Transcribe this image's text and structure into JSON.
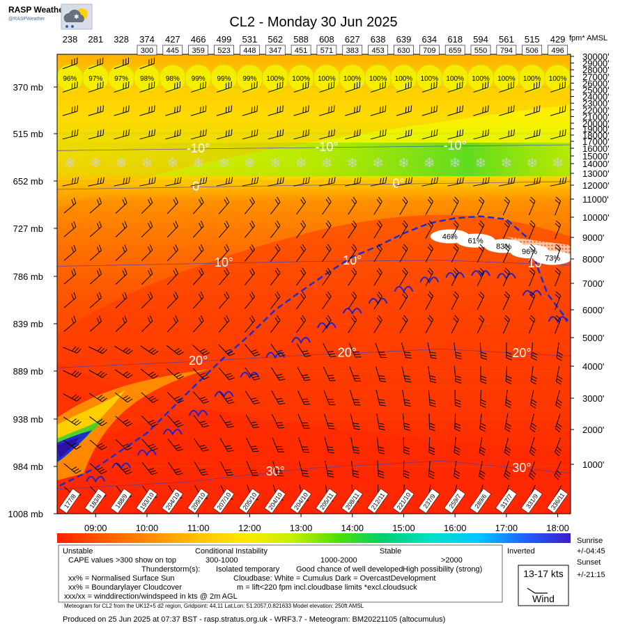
{
  "brand": {
    "name": "RASP Weather",
    "handle": "@RASPWeather",
    "logo_icon": "cloud-sun-rain-icon"
  },
  "title": "CL2 - Monday 30 Jun 2025",
  "top_axis_unit": "fpm* AMSL",
  "chart_data": {
    "type": "heatmap",
    "title": "CL2 - Monday 30 Jun 2025",
    "times": [
      "08:30",
      "09:00",
      "09:30",
      "10:00",
      "10:30",
      "11:00",
      "11:30",
      "12:00",
      "12:30",
      "13:00",
      "13:30",
      "14:00",
      "14:30",
      "15:00",
      "15:30",
      "16:00",
      "16:30",
      "17:00",
      "17:30",
      "18:00"
    ],
    "x_tick_labels": [
      "09:00",
      "10:00",
      "11:00",
      "12:00",
      "13:00",
      "14:00",
      "15:00",
      "16:00",
      "17:00",
      "18:00"
    ],
    "x_tick_hours": [
      9,
      10,
      11,
      12,
      13,
      14,
      15,
      16,
      17,
      18
    ],
    "x_range_hours": [
      8.25,
      18.25
    ],
    "pressure_labels_mb": [
      370,
      515,
      652,
      727,
      786,
      839,
      889,
      938,
      984,
      1008
    ],
    "pressure_suffix": "mb",
    "altitude_labels_ft": [
      1000,
      2000,
      3000,
      4000,
      5000,
      6000,
      7000,
      8000,
      9000,
      10000,
      11000,
      12000,
      13000,
      14000,
      15000,
      16000,
      17000,
      18000,
      19000,
      20000,
      21000,
      22000,
      23000,
      24000,
      25000,
      26000,
      27000,
      28000,
      29000,
      30000
    ],
    "altitude_suffix": "'",
    "cloudbase_fpm": [
      238,
      281,
      328,
      374,
      427,
      466,
      499,
      531,
      562,
      588,
      608,
      627,
      638,
      639,
      634,
      618,
      594,
      561,
      515,
      429
    ],
    "cape_values": [
      null,
      null,
      null,
      300,
      445,
      359,
      523,
      448,
      347,
      451,
      571,
      383,
      453,
      630,
      709,
      659,
      550,
      794,
      506,
      496
    ],
    "sun_percent": [
      "96%",
      "97%",
      "97%",
      "98%",
      "98%",
      "99%",
      "99%",
      "99%",
      "100%",
      "100%",
      "100%",
      "100%",
      "100%",
      "100%",
      "100%",
      "100%",
      "100%",
      "100%",
      "100%",
      "100%"
    ],
    "surface_wind": [
      "177/8",
      "183/8",
      "188/9",
      "193/10",
      "204/10",
      "209/10",
      "207/10",
      "205/10",
      "204/10",
      "204/10",
      "205/11",
      "208/11",
      "212/11",
      "221/10",
      "237/9",
      "259/7",
      "289/6",
      "317/7",
      "331/9",
      "336/11"
    ],
    "blcloud_percent": [
      "46%",
      "61%",
      "83%",
      "96%",
      "73%"
    ],
    "blcloud_hours": [
      15.9,
      16.4,
      16.95,
      17.45,
      17.9
    ],
    "blcloud_alt_ft": [
      9050,
      8850,
      8600,
      8350,
      8050
    ],
    "isotherms": [
      {
        "label": "-10°",
        "alt_ft": [
          15700,
          15900,
          16100,
          16300,
          16500
        ],
        "label_hours": [
          11.0,
          13.5,
          16.0
        ]
      },
      {
        "label": "0°",
        "alt_ft": [
          11700,
          11850,
          12000,
          12150,
          12300
        ],
        "label_hours": [
          11.0,
          14.9
        ]
      },
      {
        "label": "10°",
        "alt_ft": [
          7700,
          7800,
          7900,
          7950,
          7750
        ],
        "label_hours": [
          11.5,
          14.0,
          17.6
        ]
      },
      {
        "label": "20°",
        "alt_ft": [
          3950,
          4150,
          4400,
          4600,
          4350
        ],
        "label_hours": [
          11.0,
          13.9,
          17.3
        ]
      },
      {
        "label": "30°",
        "alt_ft": [
          300,
          500,
          900,
          1100,
          750
        ],
        "label_hours": [
          12.5,
          17.3
        ]
      }
    ],
    "boundary_layer_top_ft": {
      "hours": [
        8.3,
        9.0,
        9.5,
        10.0,
        10.5,
        11.0,
        11.5,
        12.0,
        12.5,
        13.0,
        13.5,
        14.0,
        14.5,
        15.0,
        15.5,
        16.0,
        16.5,
        17.0,
        17.4,
        17.6,
        17.8,
        18.2
      ],
      "alt_ft": [
        400,
        900,
        1400,
        1900,
        2700,
        3500,
        4300,
        5100,
        6000,
        6700,
        7400,
        8100,
        8600,
        9200,
        9700,
        9950,
        10050,
        9900,
        9000,
        7700,
        6600,
        5600
      ]
    },
    "colorbar": {
      "stops": [
        "#ff1e00",
        "#ff5a00",
        "#ff8c00",
        "#ffc000",
        "#ffe800",
        "#c8f000",
        "#50e000",
        "#00d070",
        "#00e0c8",
        "#00c8ff",
        "#1e64ff",
        "#3c1ec8"
      ],
      "labels": [
        "Unstable",
        "Conditional Instability",
        "Stable",
        "Inverted"
      ],
      "cape_ranges": [
        "300-1000",
        "1000-2000",
        ">2000"
      ],
      "cape_caption": "CAPE values >300 show on top"
    }
  },
  "legend": {
    "thunderstorms_label": "Thunderstorm(s):",
    "thunderstorms_levels": [
      "Isolated temporary",
      "Good chance of well developed",
      "High possibility (strong)"
    ],
    "sun_line": "xx% = Normalised Surface Sun",
    "cloudbase_line": "Cloudbase: White = Cumulus    Dark = OvercastDevelopment",
    "blcloud_line": "xx% = Boundarylayer Cloudcover",
    "lift_line": "m = lift<220 fpm incl.cloudbase limits *excl.cloudsuck",
    "wind_line": "xxx/xx = winddirection/windspeed in kts @ 2m AGL",
    "wind_key_speed": "13-17 kts",
    "wind_key_label": "Wind"
  },
  "sun": {
    "sunrise_label": "Sunrise",
    "sunrise_offset": "+/-04:45",
    "sunset_label": "Sunset",
    "sunset_offset": "+/-21:15"
  },
  "footer": {
    "model_line": "Meteogram for CL2 from the UK12+5 d2 region, Gridpoint: 44,11 Lat,Lon: 51.2057,0.821633 Model elevation: 250ft AMSL",
    "produced_line": "Produced on 25 Jun 2025 at 07:37 BST - rasp.stratus.org.uk - WRF3.7 - Meteogram: BM20221105 (altocumulus)"
  }
}
